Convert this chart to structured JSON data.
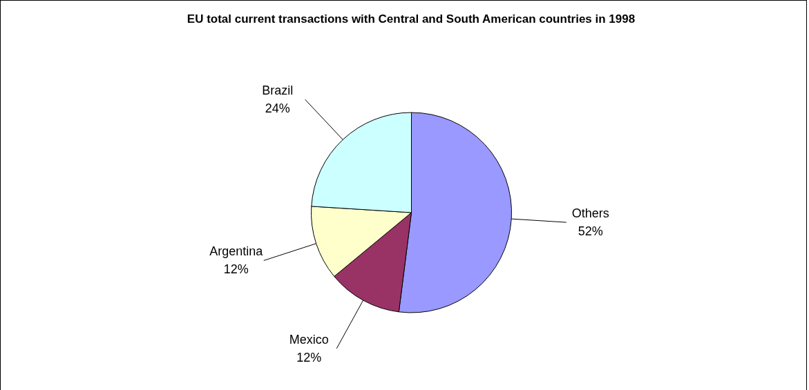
{
  "chart_data": {
    "type": "pie",
    "title": "EU total current transactions with Central and South American countries in 1998",
    "categories": [
      "Others",
      "Mexico",
      "Argentina",
      "Brazil"
    ],
    "values": [
      52,
      12,
      12,
      24
    ],
    "colors": [
      "#9999ff",
      "#993366",
      "#ffffcc",
      "#ccffff"
    ],
    "value_labels": [
      "52%",
      "12%",
      "12%",
      "24%"
    ],
    "legend": false
  }
}
